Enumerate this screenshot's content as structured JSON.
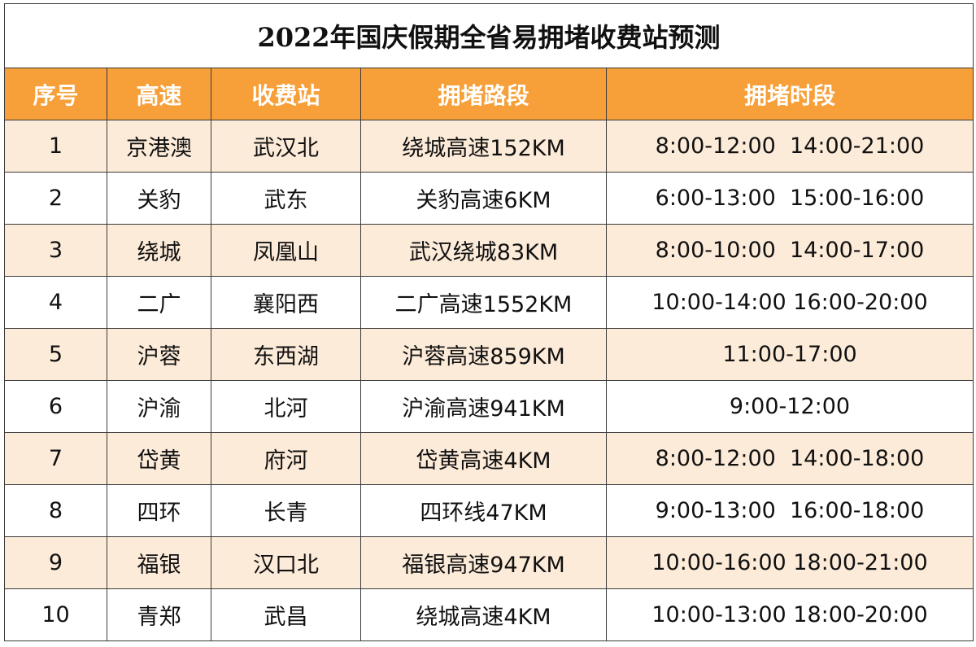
{
  "title": "2022年国庆假期全省易拥堵收费站预测",
  "columns": [
    "序号",
    "高速",
    "收费站",
    "拥堵路段",
    "拥堵时段"
  ],
  "header_color": "#F79F38",
  "alt_row_color": "#FDEBD9",
  "rows": [
    [
      "1",
      "京港澳",
      "武汉北",
      "绕城高速152KM",
      "8:00-12:00  14:00-21:00"
    ],
    [
      "2",
      "关豹",
      "武东",
      "关豹高速6KM",
      "6:00-13:00  15:00-16:00"
    ],
    [
      "3",
      "绕城",
      "凤凰山",
      "武汉绕城83KM",
      "8:00-10:00  14:00-17:00"
    ],
    [
      "4",
      "二广",
      "襄阳西",
      "二广高速1552KM",
      "10:00-14:00 16:00-20:00"
    ],
    [
      "5",
      "沪蓉",
      "东西湖",
      "沪蓉高速859KM",
      "11:00-17:00"
    ],
    [
      "6",
      "沪渝",
      "北河",
      "沪渝高速941KM",
      "9:00-12:00"
    ],
    [
      "7",
      "岱黄",
      "府河",
      "岱黄高速4KM",
      "8:00-12:00  14:00-18:00"
    ],
    [
      "8",
      "四环",
      "长青",
      "四环线47KM",
      "9:00-13:00  16:00-18:00"
    ],
    [
      "9",
      "福银",
      "汉口北",
      "福银高速947KM",
      "10:00-16:00 18:00-21:00"
    ],
    [
      "10",
      "青郑",
      "武昌",
      "绕城高速4KM",
      "10:00-13:00 18:00-20:00"
    ]
  ]
}
